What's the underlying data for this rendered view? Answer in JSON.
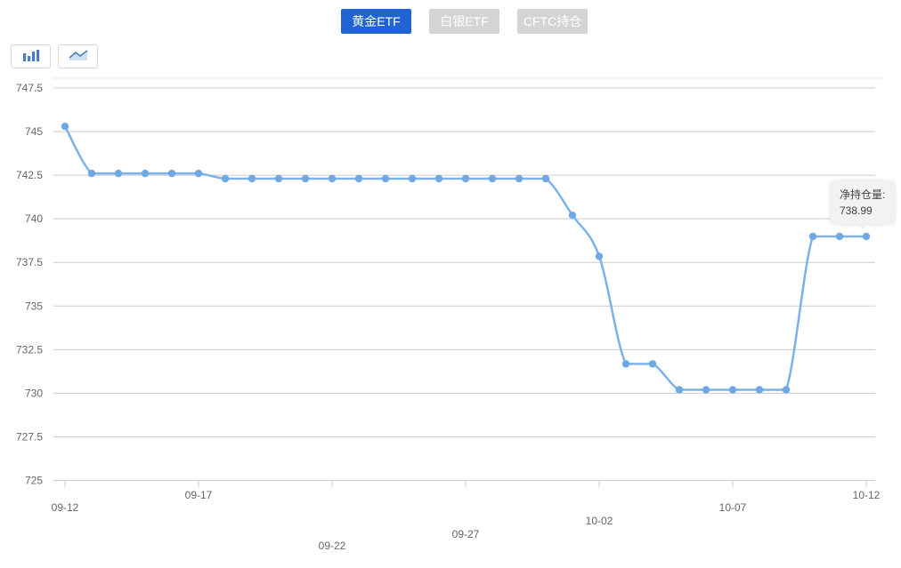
{
  "tabs": {
    "items": [
      {
        "label": "黄金ETF",
        "active": true
      },
      {
        "label": "白银ETF",
        "active": false
      },
      {
        "label": "CFTC持仓",
        "active": false
      }
    ]
  },
  "chart_type_switcher": {
    "buttons": [
      {
        "icon": "bar-chart-icon"
      },
      {
        "icon": "area-chart-icon"
      }
    ]
  },
  "tooltip": {
    "label": "净持仓量:",
    "value": "738.99"
  },
  "colors": {
    "active_tab_bg": "#2064d4",
    "inactive_tab_bg": "#d4d4d4",
    "tab_text": "#ffffff",
    "line": "#7db2e8",
    "point": "#6ea9e4",
    "gridline": "#cccccc",
    "plot_border": "#e4e4e4",
    "axis_text": "#666666",
    "tooltip_bg": "#f2f2f2",
    "icon_blue": "#4d7cc1",
    "icon_fill": "#cfe0f2"
  },
  "chart_data": {
    "type": "line",
    "title": "",
    "x": [
      "09-12",
      "09-13",
      "09-14",
      "09-15",
      "09-16",
      "09-17",
      "09-18",
      "09-19",
      "09-20",
      "09-21",
      "09-22",
      "09-23",
      "09-24",
      "09-25",
      "09-26",
      "09-27",
      "09-28",
      "09-29",
      "09-30",
      "10-01",
      "10-02",
      "10-03",
      "10-04",
      "10-05",
      "10-06",
      "10-07",
      "10-08",
      "10-09",
      "10-10",
      "10-11",
      "10-12"
    ],
    "series": [
      {
        "name": "净持仓量",
        "values": [
          745.3,
          742.6,
          742.6,
          742.6,
          742.6,
          742.6,
          742.3,
          742.3,
          742.3,
          742.3,
          742.3,
          742.3,
          742.3,
          742.3,
          742.3,
          742.3,
          742.3,
          742.3,
          742.3,
          740.2,
          737.85,
          731.68,
          731.68,
          730.2,
          730.2,
          730.2,
          730.2,
          730.2,
          738.99,
          738.99,
          738.99
        ]
      }
    ],
    "ylim": [
      725,
      747.5
    ],
    "ytick_step": 2.5,
    "yticks": [
      747.5,
      745,
      742.5,
      740,
      737.5,
      735,
      732.5,
      730,
      727.5,
      725
    ],
    "xtick_indices": [
      0,
      5,
      10,
      15,
      20,
      25,
      30
    ],
    "xtick_labels": [
      "09-12",
      "09-17",
      "09-22",
      "09-27",
      "10-02",
      "10-07",
      "10-12"
    ],
    "grid": true,
    "legend": "none"
  }
}
